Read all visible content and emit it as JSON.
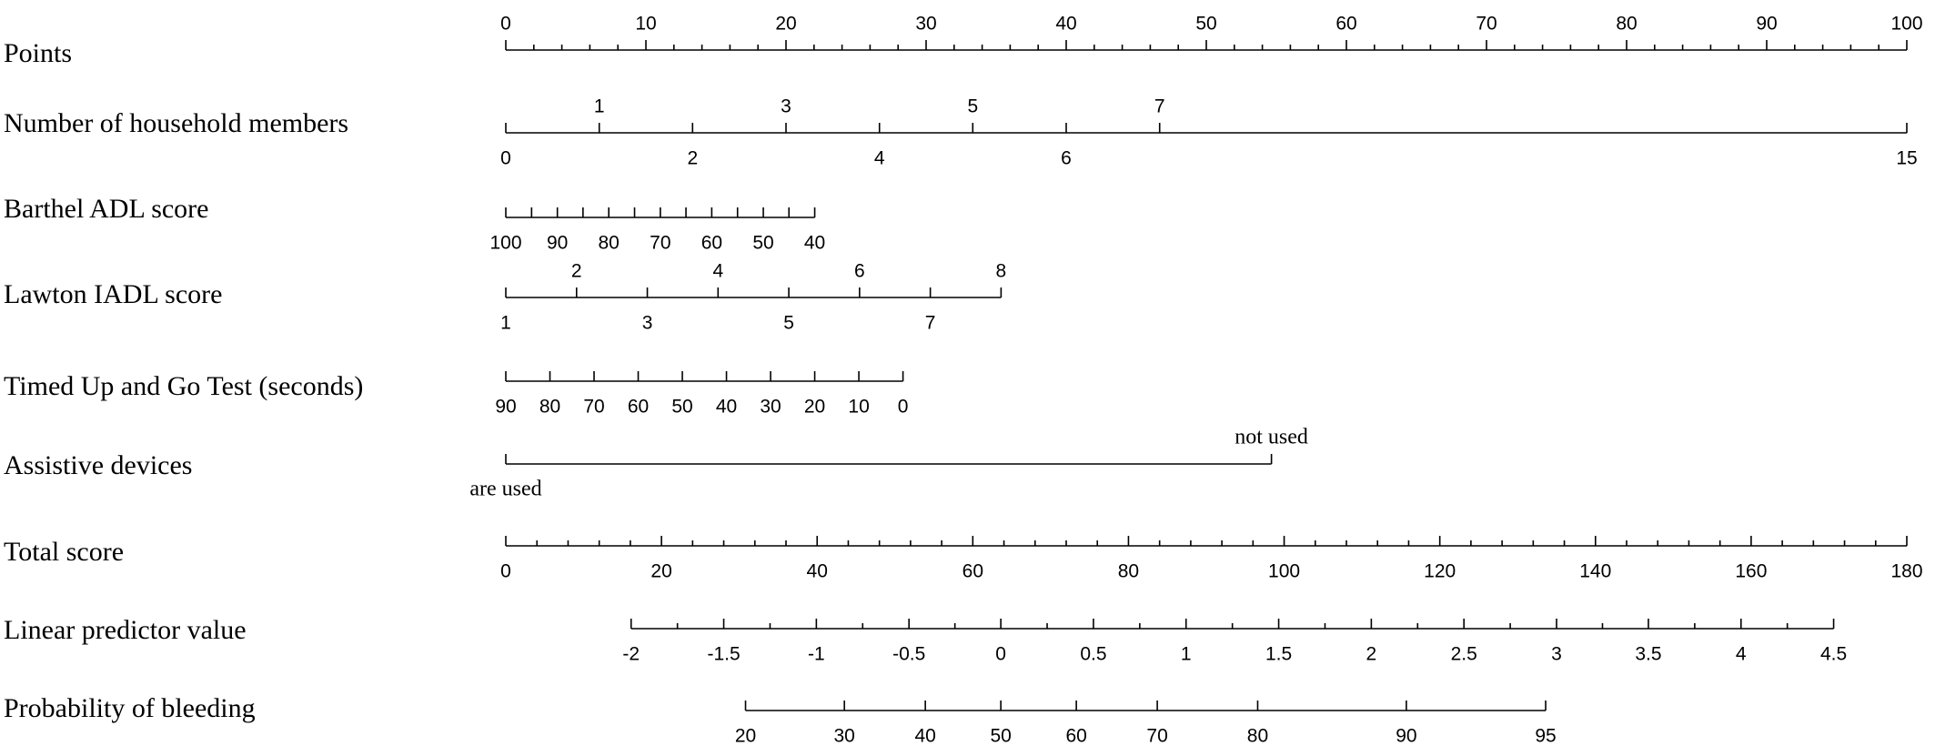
{
  "chart_data": {
    "type": "nomogram",
    "points_xlim": [
      0,
      100
    ],
    "total_xlim": [
      0,
      180
    ],
    "rows": [
      {
        "label": "Points",
        "axis": "points",
        "labels": "above",
        "minor_step": 2,
        "ticks": [
          0,
          10,
          20,
          30,
          40,
          50,
          60,
          70,
          80,
          90,
          100
        ]
      },
      {
        "label": "Number of household members",
        "axis": "points",
        "labels": "alternate",
        "ticks": [
          0,
          1,
          2,
          3,
          4,
          5,
          6,
          7,
          15
        ],
        "positions": [
          0,
          6.67,
          13.33,
          20,
          26.67,
          33.33,
          40,
          46.67,
          100
        ]
      },
      {
        "label": "Barthel ADL score",
        "axis": "points",
        "labels": "below",
        "ticks": [
          100,
          null,
          90,
          null,
          80,
          null,
          70,
          null,
          60,
          null,
          50,
          null,
          40
        ],
        "positions": [
          0,
          1.84,
          3.68,
          5.51,
          7.35,
          9.19,
          11.03,
          12.86,
          14.7,
          16.54,
          18.38,
          20.21,
          22.05
        ]
      },
      {
        "label": "Lawton IADL score",
        "axis": "points",
        "labels": "alternate",
        "ticks": [
          1,
          2,
          3,
          4,
          5,
          6,
          7,
          8
        ],
        "positions": [
          0,
          5.05,
          10.1,
          15.15,
          20.2,
          25.25,
          30.3,
          35.35
        ]
      },
      {
        "label": "Timed Up and Go Test (seconds)",
        "axis": "points",
        "labels": "below",
        "ticks": [
          90,
          80,
          70,
          60,
          50,
          40,
          30,
          20,
          10,
          0
        ],
        "positions": [
          0,
          3.15,
          6.3,
          9.45,
          12.6,
          15.75,
          18.9,
          22.05,
          25.2,
          28.35
        ]
      },
      {
        "label": "Assistive devices",
        "axis": "points",
        "labels": "alternate",
        "ticks": [
          "are used",
          "not used"
        ],
        "positions": [
          0,
          54.65
        ]
      },
      {
        "label": "Total score",
        "axis": "total",
        "labels": "below",
        "minor_step": 4,
        "ticks": [
          0,
          20,
          40,
          60,
          80,
          100,
          120,
          140,
          160,
          180
        ]
      },
      {
        "label": "Linear predictor value",
        "axis": "total",
        "labels": "below",
        "minor_step": 0.25,
        "ticks": [
          -2,
          -1.5,
          -1,
          -0.5,
          0,
          0.5,
          1,
          1.5,
          2,
          2.5,
          3,
          3.5,
          4,
          4.5
        ],
        "positions": [
          16.1,
          28.0,
          39.9,
          51.8,
          63.6,
          75.5,
          87.4,
          99.3,
          111.2,
          123.1,
          135.0,
          146.8,
          158.7,
          170.6
        ]
      },
      {
        "label": "Probability of bleeding",
        "axis": "total",
        "labels": "below",
        "ticks": [
          20,
          30,
          40,
          50,
          60,
          70,
          80,
          90,
          95
        ],
        "positions": [
          30.8,
          43.5,
          53.9,
          63.6,
          73.3,
          83.7,
          96.6,
          115.7,
          133.6
        ]
      }
    ]
  }
}
